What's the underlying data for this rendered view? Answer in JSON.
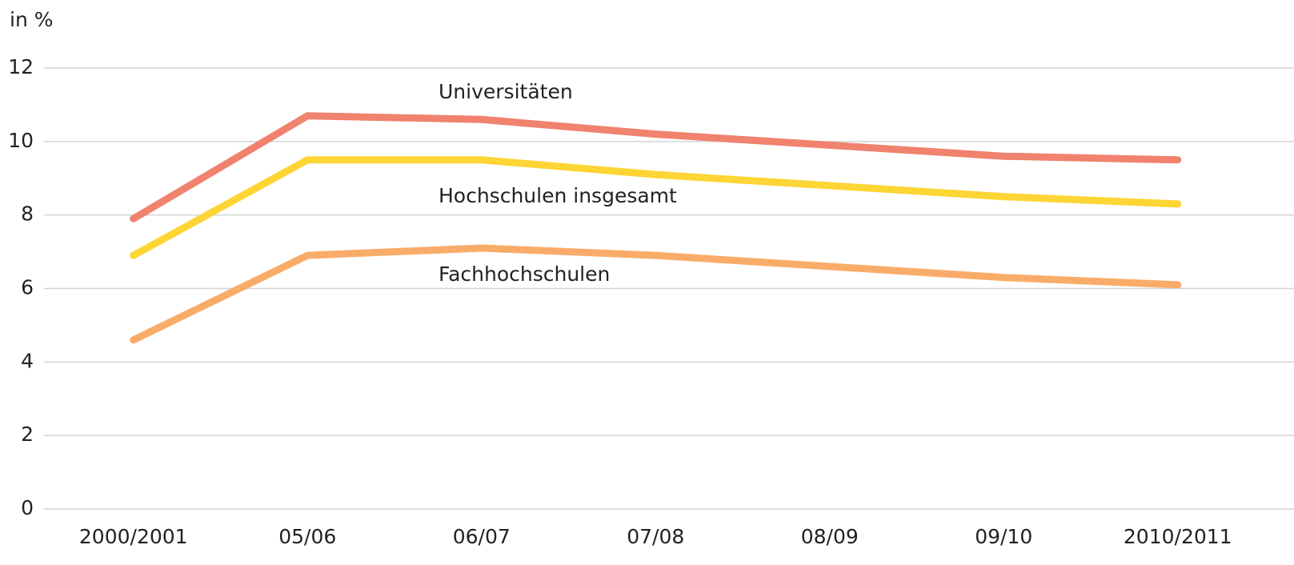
{
  "chart_data": {
    "type": "line",
    "y_label": "in %",
    "categories": [
      "2000/2001",
      "05/06",
      "06/07",
      "07/08",
      "08/09",
      "09/10",
      "2010/2011"
    ],
    "series": [
      {
        "name": "Universitäten",
        "color": "#f0826e",
        "values": [
          7.9,
          10.7,
          10.6,
          10.2,
          9.9,
          9.6,
          9.5
        ]
      },
      {
        "name": "Hochschulen insgesamt",
        "color": "#fdd535",
        "values": [
          6.9,
          9.5,
          9.5,
          9.1,
          8.8,
          8.5,
          8.3
        ]
      },
      {
        "name": "Fachhochschulen",
        "color": "#f9ac6a",
        "values": [
          4.6,
          6.9,
          7.1,
          6.9,
          6.6,
          6.3,
          6.1
        ]
      }
    ],
    "ylim": [
      0,
      12
    ],
    "yticks": [
      0,
      2,
      4,
      6,
      8,
      10,
      12
    ],
    "grid": true
  }
}
